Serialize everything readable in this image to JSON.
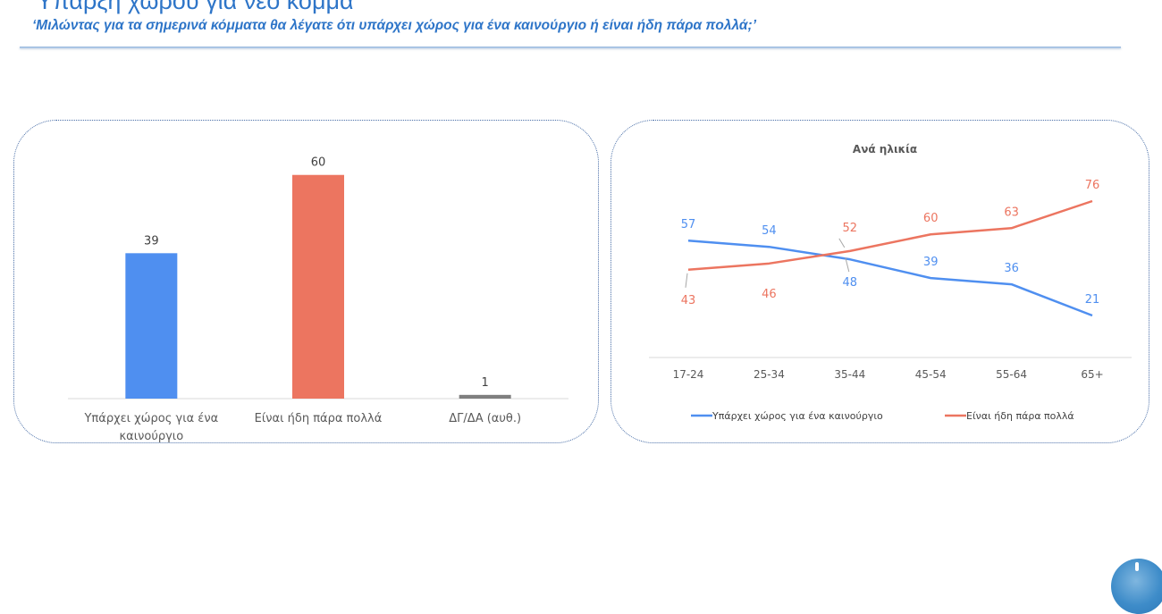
{
  "header": {
    "title": "Ύπαρξη χώρου για νέο κόμμα",
    "subtitle": "‘Μιλώντας για τα σημερινά κόμματα θα λέγατε ότι υπάρχει χώρος για ένα καινούργιο ή είναι ήδη πάρα πολλά;’"
  },
  "chart_data": [
    {
      "type": "bar",
      "title": "",
      "categories": [
        [
          "Υπάρχει χώρος για ένα",
          "καινούργιο"
        ],
        [
          "Είναι ήδη πάρα πολλά"
        ],
        [
          "ΔΓ/ΔΑ (αυθ.)"
        ]
      ],
      "values": [
        39,
        60,
        1
      ],
      "data_labels": [
        "39",
        "60",
        "1"
      ],
      "colors": [
        "#4f8ff0",
        "#ec7560",
        "#7f7f7f"
      ],
      "ylim": [
        0,
        70
      ],
      "grid": false,
      "legend": "none"
    },
    {
      "type": "line",
      "title": "Ανά ηλικία",
      "categories": [
        "17-24",
        "25-34",
        "35-44",
        "45-54",
        "55-64",
        "65+"
      ],
      "series": [
        {
          "name": "Υπάρχει χώρος για ένα καινούργιο",
          "values": [
            57,
            54,
            48,
            39,
            36,
            21
          ],
          "color": "#4f8ff0",
          "label_placement": [
            "above",
            "above",
            "below",
            "above",
            "above",
            "above"
          ]
        },
        {
          "name": "Είναι ήδη πάρα πολλά",
          "values": [
            43,
            46,
            52,
            60,
            63,
            76
          ],
          "color": "#ec7560",
          "label_placement": [
            "below",
            "below",
            "above",
            "above",
            "above",
            "above"
          ]
        }
      ],
      "ylim": [
        0,
        80
      ],
      "grid": false,
      "legend": "bottom"
    }
  ]
}
